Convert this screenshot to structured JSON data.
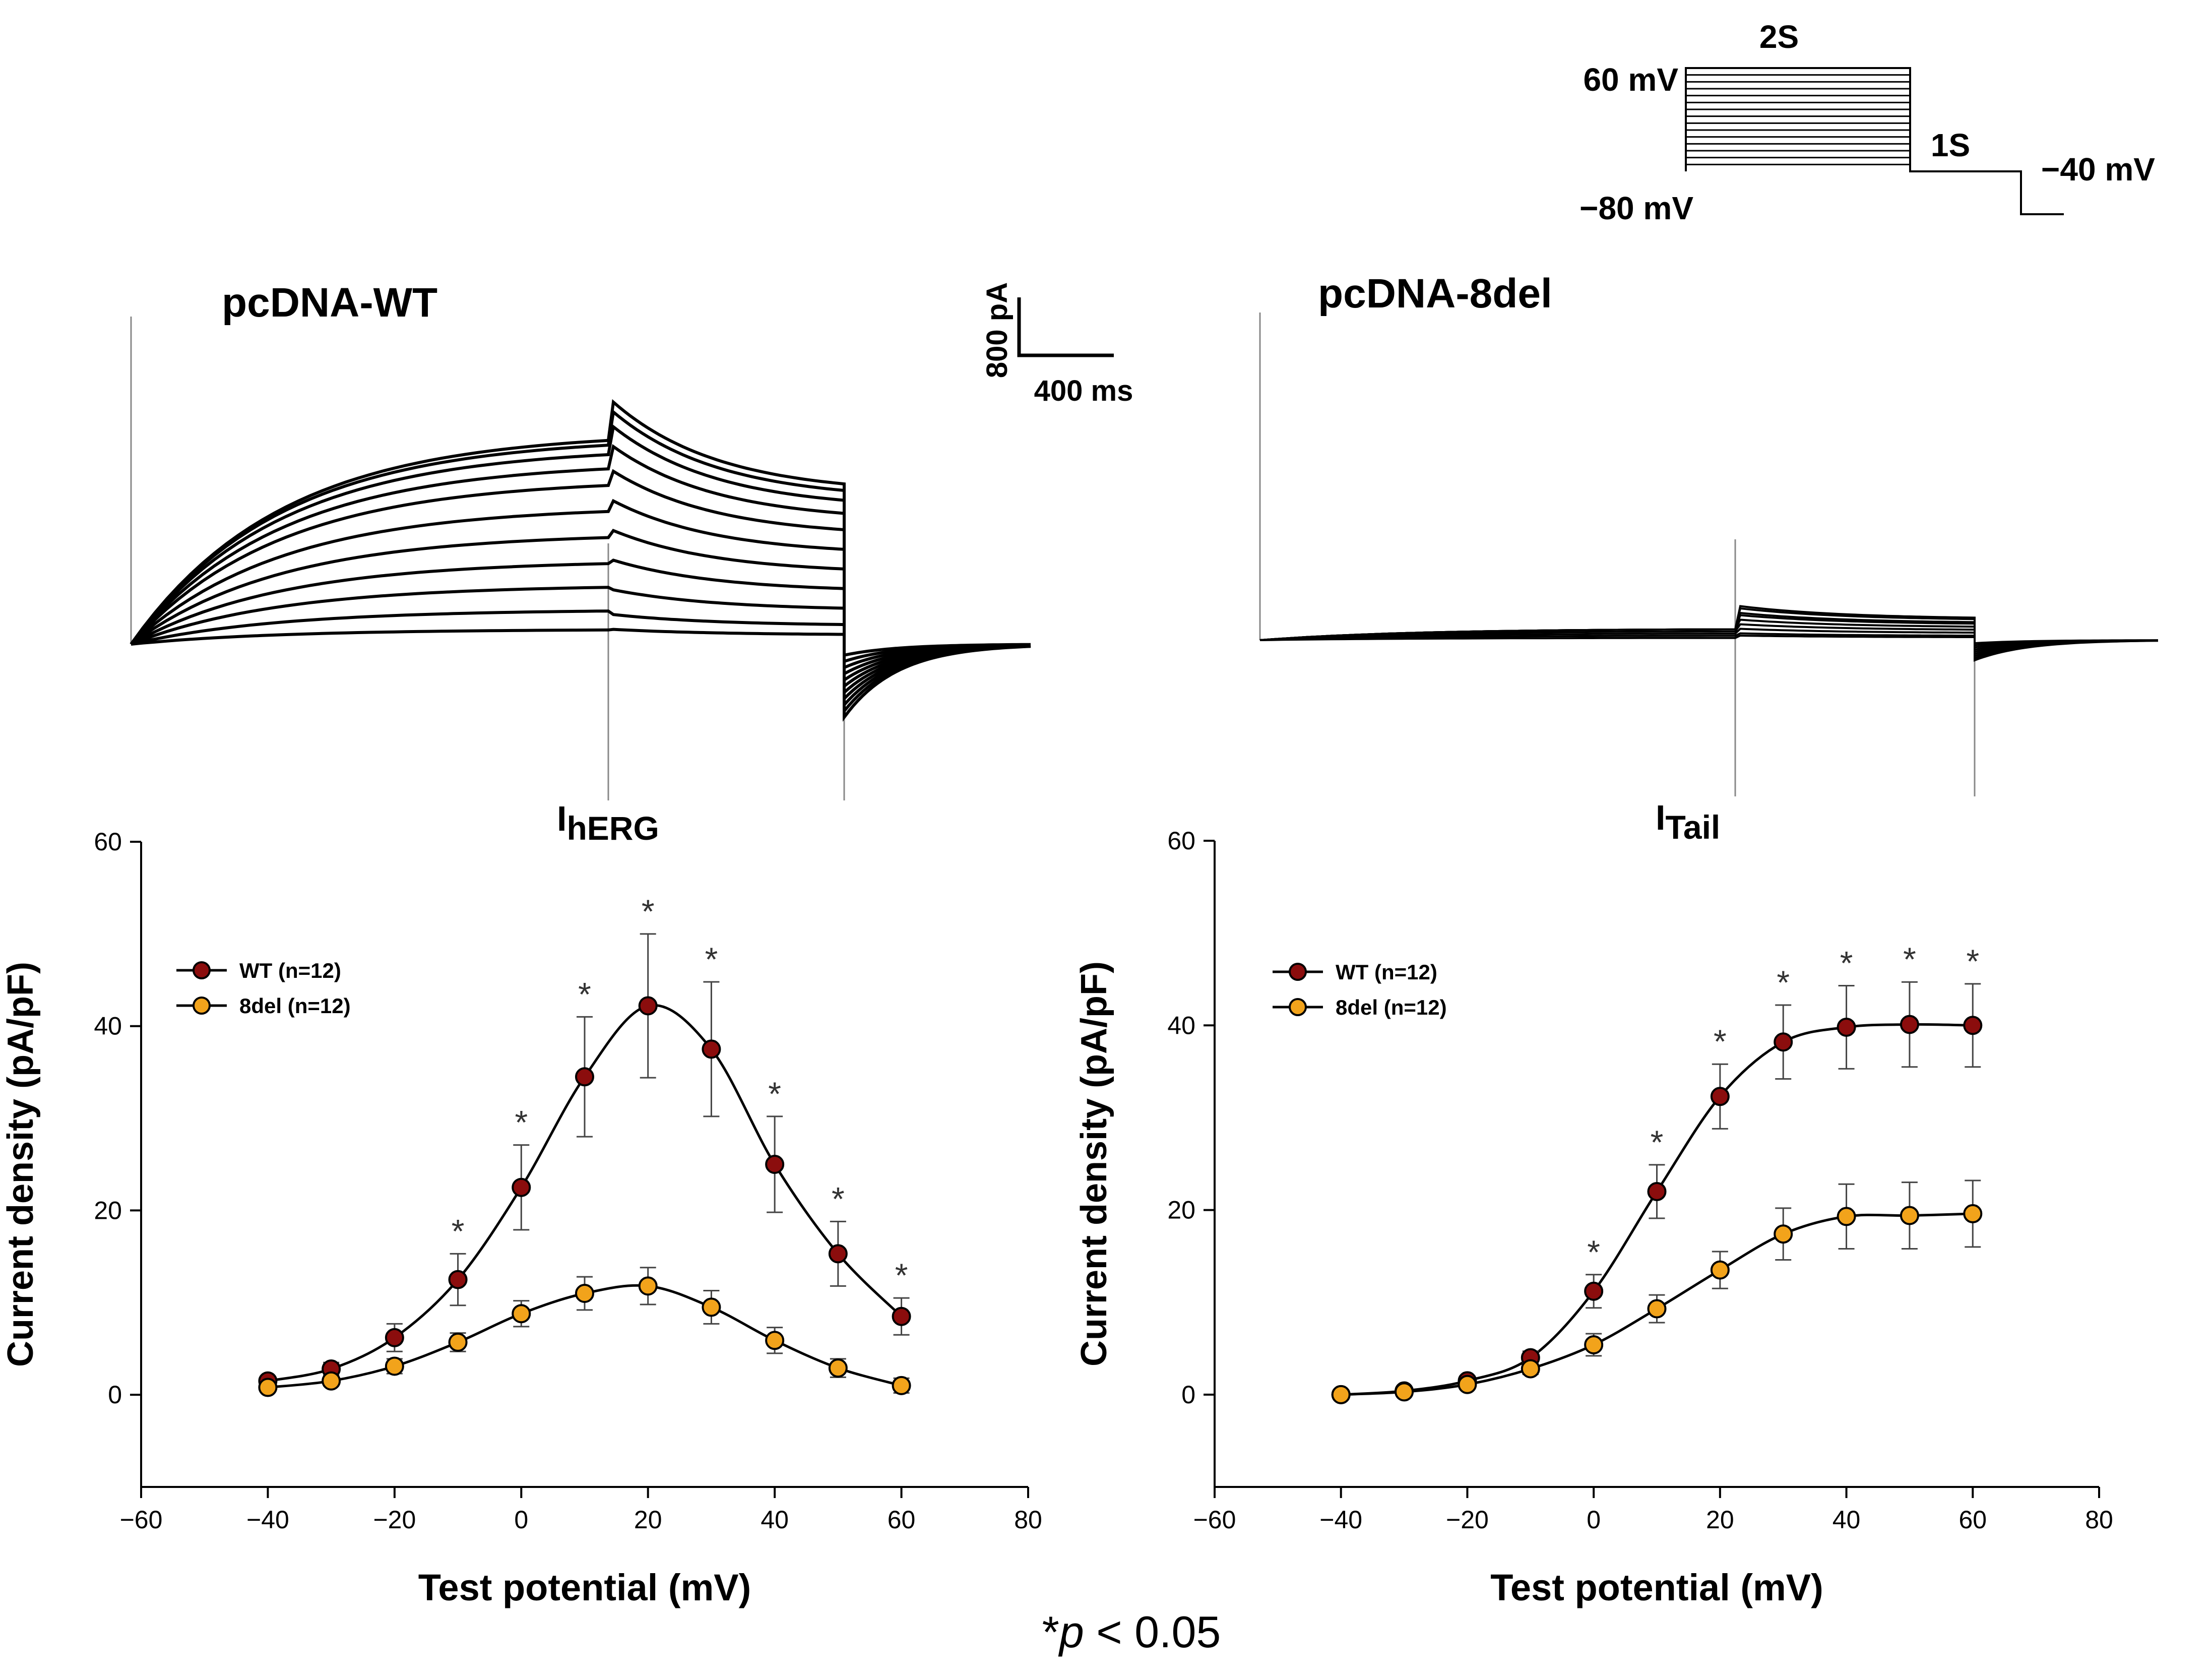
{
  "protocol": {
    "hold_label": "−80 mV",
    "step_label": "60 mV",
    "step_duration": "2S",
    "tail_duration": "1S",
    "tail_label": "−40 mV"
  },
  "traces": {
    "wt_title": "pcDNA-WT",
    "del_title": "pcDNA-8del",
    "scale_current": "800 pA",
    "scale_time": "400 ms",
    "wt_step_levels": [
      0.06,
      0.14,
      0.24,
      0.34,
      0.45,
      0.56,
      0.67,
      0.74,
      0.8,
      0.84,
      0.86
    ],
    "wt_tail_peaks": [
      0.06,
      0.12,
      0.22,
      0.34,
      0.46,
      0.58,
      0.7,
      0.8,
      0.88,
      0.94,
      0.98
    ],
    "del_step_levels": [
      0.01,
      0.02,
      0.03,
      0.04,
      0.05,
      0.05,
      0.05,
      0.05,
      0.05
    ],
    "del_tail_peaks": [
      0.02,
      0.03,
      0.05,
      0.07,
      0.09,
      0.11,
      0.12,
      0.14,
      0.15
    ]
  },
  "footnote": {
    "star": "*",
    "p_symbol": "p",
    "rest": " < 0.05"
  },
  "chart_data": [
    {
      "type": "line",
      "title_main": "I",
      "title_sub": "hERG",
      "xlabel": "Test potential (mV)",
      "ylabel": "Current density (pA/pF)",
      "xlim": [
        -60,
        80
      ],
      "ylim": [
        -10,
        60
      ],
      "xticks": [
        -60,
        -40,
        -20,
        0,
        20,
        40,
        60,
        80
      ],
      "yticks": [
        0,
        20,
        40,
        60
      ],
      "x": [
        -40,
        -30,
        -20,
        -10,
        0,
        10,
        20,
        30,
        40,
        50,
        60
      ],
      "series": [
        {
          "name": "WT (n=12)",
          "color": "#8b0d0d",
          "values": [
            1.5,
            2.8,
            6.2,
            12.5,
            22.5,
            34.5,
            42.2,
            37.5,
            25.0,
            15.3,
            8.5
          ],
          "errors": [
            0.5,
            0.7,
            1.5,
            2.8,
            4.6,
            6.5,
            7.8,
            7.3,
            5.2,
            3.5,
            2.0
          ]
        },
        {
          "name": "8del (n=12)",
          "color": "#f2a31b",
          "values": [
            0.8,
            1.5,
            3.1,
            5.7,
            8.8,
            11.0,
            11.8,
            9.5,
            5.9,
            2.9,
            1.0
          ],
          "errors": [
            0.4,
            0.5,
            0.8,
            1.0,
            1.4,
            1.8,
            2.0,
            1.8,
            1.4,
            1.0,
            0.8
          ]
        }
      ],
      "significant_x": [
        -10,
        0,
        10,
        20,
        30,
        40,
        50,
        60
      ],
      "significance_mark": "*",
      "legend": "top-left"
    },
    {
      "type": "line",
      "title_main": "I",
      "title_sub": "Tail",
      "xlabel": "Test potential (mV)",
      "ylabel": "Current density (pA/pF)",
      "xlim": [
        -60,
        80
      ],
      "ylim": [
        -10,
        60
      ],
      "xticks": [
        -60,
        -40,
        -20,
        0,
        20,
        40,
        60,
        80
      ],
      "yticks": [
        0,
        20,
        40,
        60
      ],
      "x": [
        -40,
        -30,
        -20,
        -10,
        0,
        10,
        20,
        30,
        40,
        50,
        60
      ],
      "series": [
        {
          "name": "WT (n=12)",
          "color": "#8b0d0d",
          "values": [
            0.0,
            0.4,
            1.5,
            4.0,
            11.2,
            22.0,
            32.3,
            38.2,
            39.8,
            40.1,
            40.0
          ],
          "errors": [
            0.3,
            0.4,
            0.5,
            0.7,
            1.8,
            2.9,
            3.5,
            4.0,
            4.5,
            4.6,
            4.5
          ]
        },
        {
          "name": "8del (n=12)",
          "color": "#f2a31b",
          "values": [
            0.0,
            0.3,
            1.1,
            2.8,
            5.4,
            9.3,
            13.5,
            17.4,
            19.3,
            19.4,
            19.6
          ],
          "errors": [
            0.3,
            0.3,
            0.4,
            0.6,
            1.2,
            1.5,
            2.0,
            2.8,
            3.5,
            3.6,
            3.6
          ]
        }
      ],
      "significant_x": [
        0,
        10,
        20,
        30,
        40,
        50,
        60
      ],
      "significance_mark": "*",
      "legend": "top-left"
    }
  ]
}
